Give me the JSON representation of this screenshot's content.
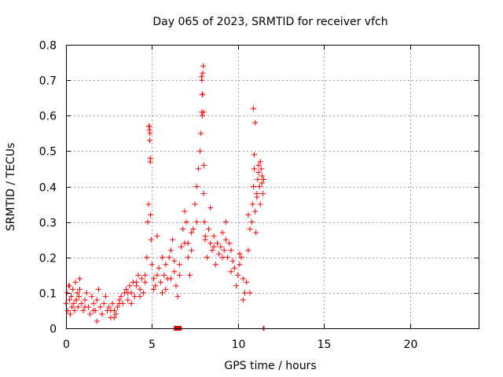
{
  "chart_data": {
    "type": "scatter",
    "title": "Day 065 of 2023, SRMTID for receiver vfch",
    "xlabel": "GPS time / hours",
    "ylabel": "SRMTID / TECUs",
    "xlim": [
      0,
      24
    ],
    "ylim": [
      0,
      0.8
    ],
    "xticks": [
      0,
      5,
      10,
      15,
      20
    ],
    "xtick_labels": [
      "0",
      "5",
      "10",
      "15",
      "20"
    ],
    "yticks": [
      0,
      0.1,
      0.2,
      0.3,
      0.4,
      0.5,
      0.6,
      0.7,
      0.8
    ],
    "ytick_labels": [
      "0",
      "0.1",
      "0.2",
      "0.3",
      "0.4",
      "0.5",
      "0.6",
      "0.7",
      "0.8"
    ],
    "grid": true,
    "marker": "+",
    "color": "#ff0000",
    "axis_markers": [
      {
        "x": 6.5,
        "y": 0,
        "shape": "square"
      },
      {
        "x": 11.5,
        "y": 0,
        "shape": "tick"
      }
    ],
    "series": [
      {
        "name": "SRMTID",
        "x": [
          0.0,
          0.05,
          0.1,
          0.15,
          0.2,
          0.25,
          0.3,
          0.35,
          0.4,
          0.45,
          0.5,
          0.55,
          0.6,
          0.65,
          0.7,
          0.75,
          0.8,
          0.9,
          1.0,
          1.1,
          1.2,
          1.3,
          1.4,
          1.5,
          1.6,
          1.7,
          1.8,
          1.9,
          2.0,
          2.1,
          2.2,
          2.3,
          2.4,
          2.5,
          2.6,
          2.7,
          2.8,
          2.9,
          3.0,
          3.1,
          3.2,
          3.3,
          3.4,
          3.5,
          3.6,
          3.7,
          3.8,
          3.9,
          4.0,
          4.1,
          4.2,
          4.3,
          4.4,
          4.5,
          4.6,
          4.7,
          4.75,
          4.8,
          4.82,
          4.85,
          4.87,
          4.9,
          4.92,
          4.95,
          5.0,
          5.1,
          5.2,
          5.3,
          5.4,
          5.5,
          5.6,
          5.7,
          5.8,
          5.9,
          6.0,
          6.1,
          6.2,
          6.3,
          6.4,
          6.5,
          6.6,
          6.7,
          6.8,
          6.9,
          7.0,
          7.1,
          7.2,
          7.3,
          7.4,
          7.5,
          7.6,
          7.7,
          7.8,
          7.85,
          7.9,
          7.92,
          7.95,
          7.98,
          8.0,
          8.05,
          8.1,
          8.2,
          8.3,
          8.4,
          8.5,
          8.6,
          8.7,
          8.8,
          8.9,
          9.0,
          9.1,
          9.2,
          9.3,
          9.4,
          9.5,
          9.6,
          9.7,
          9.8,
          9.9,
          10.0,
          10.1,
          10.2,
          10.3,
          10.4,
          10.5,
          10.6,
          10.7,
          10.8,
          10.85,
          10.9,
          10.95,
          11.0,
          11.05,
          11.1,
          11.15,
          11.2,
          11.25,
          11.3,
          11.35,
          11.4,
          11.45,
          11.5,
          0.2,
          0.6,
          1.1,
          1.6,
          2.1,
          2.6,
          3.1,
          3.6,
          4.1,
          4.6,
          5.1,
          5.6,
          6.1,
          6.6,
          7.1,
          7.6,
          8.1,
          8.6,
          9.1,
          9.6,
          10.1,
          10.6,
          11.1,
          4.85,
          4.88,
          4.9,
          7.9,
          7.95,
          8.0,
          7.88,
          7.93,
          8.02,
          10.9,
          11.0,
          10.95,
          11.2,
          11.3,
          11.4,
          5.8,
          6.9,
          7.3,
          8.4,
          9.3,
          10.3,
          10.7,
          5.3,
          6.3,
          3.8,
          4.3,
          2.8,
          1.8,
          0.8
        ],
        "y": [
          0.07,
          0.1,
          0.05,
          0.12,
          0.08,
          0.04,
          0.09,
          0.06,
          0.11,
          0.07,
          0.05,
          0.13,
          0.08,
          0.1,
          0.06,
          0.09,
          0.11,
          0.07,
          0.05,
          0.08,
          0.1,
          0.06,
          0.04,
          0.09,
          0.07,
          0.05,
          0.08,
          0.11,
          0.06,
          0.04,
          0.07,
          0.09,
          0.05,
          0.06,
          0.03,
          0.07,
          0.05,
          0.04,
          0.06,
          0.08,
          0.09,
          0.07,
          0.1,
          0.11,
          0.08,
          0.12,
          0.1,
          0.13,
          0.09,
          0.12,
          0.15,
          0.11,
          0.14,
          0.1,
          0.13,
          0.2,
          0.3,
          0.35,
          0.57,
          0.56,
          0.53,
          0.47,
          0.32,
          0.25,
          0.18,
          0.14,
          0.12,
          0.15,
          0.17,
          0.13,
          0.1,
          0.15,
          0.18,
          0.14,
          0.2,
          0.22,
          0.25,
          0.16,
          0.12,
          0.09,
          0.15,
          0.23,
          0.28,
          0.33,
          0.3,
          0.2,
          0.15,
          0.22,
          0.28,
          0.35,
          0.4,
          0.45,
          0.5,
          0.55,
          0.61,
          0.66,
          0.72,
          0.74,
          0.38,
          0.3,
          0.25,
          0.2,
          0.28,
          0.24,
          0.22,
          0.26,
          0.18,
          0.24,
          0.21,
          0.23,
          0.27,
          0.22,
          0.25,
          0.2,
          0.24,
          0.22,
          0.19,
          0.17,
          0.12,
          0.15,
          0.18,
          0.2,
          0.14,
          0.1,
          0.13,
          0.22,
          0.28,
          0.3,
          0.35,
          0.4,
          0.45,
          0.33,
          0.27,
          0.38,
          0.42,
          0.46,
          0.4,
          0.35,
          0.45,
          0.43,
          0.38,
          0.42,
          0.12,
          0.08,
          0.06,
          0.05,
          0.04,
          0.05,
          0.07,
          0.1,
          0.13,
          0.15,
          0.11,
          0.2,
          0.14,
          0.18,
          0.24,
          0.3,
          0.26,
          0.23,
          0.2,
          0.16,
          0.21,
          0.32,
          0.37,
          0.57,
          0.55,
          0.48,
          0.7,
          0.66,
          0.61,
          0.71,
          0.6,
          0.46,
          0.62,
          0.58,
          0.49,
          0.44,
          0.47,
          0.41,
          0.11,
          0.24,
          0.27,
          0.34,
          0.3,
          0.08,
          0.1,
          0.26,
          0.19,
          0.07,
          0.09,
          0.03,
          0.02,
          0.14
        ]
      }
    ]
  }
}
